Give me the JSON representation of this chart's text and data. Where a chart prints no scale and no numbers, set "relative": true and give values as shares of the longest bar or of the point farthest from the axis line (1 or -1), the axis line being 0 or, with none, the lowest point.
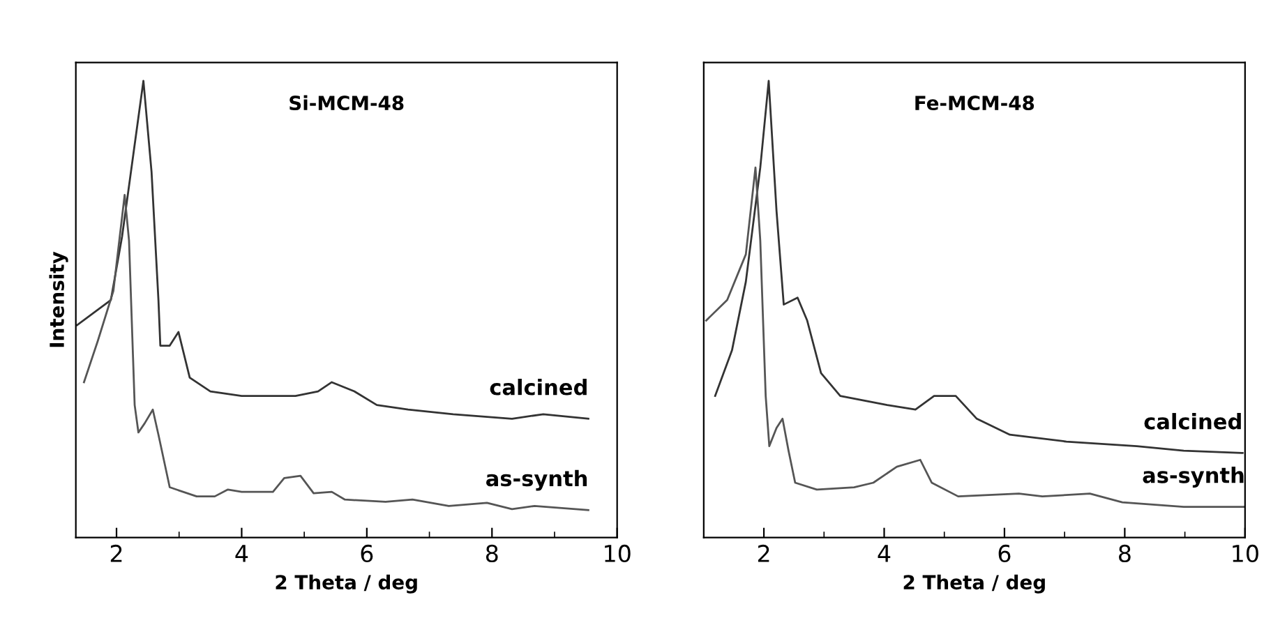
{
  "chart_data": [
    {
      "type": "line",
      "title": "Si-MCM-48",
      "xlabel": "2 Theta / deg",
      "ylabel": "Intensity",
      "relative": true,
      "xlim": [
        1.35,
        10
      ],
      "xticks": [
        2,
        4,
        6,
        8,
        10
      ],
      "tick_labels": "x",
      "grid": false,
      "legend": false,
      "marker": "none",
      "line_style": "solid",
      "series": [
        {
          "name": "calcined",
          "color": "#333333",
          "x": [
            1.37,
            1.91,
            2.09,
            2.27,
            2.43,
            2.56,
            2.67,
            2.7,
            2.85,
            2.99,
            3.17,
            3.5,
            4.0,
            4.86,
            5.22,
            5.44,
            5.8,
            6.16,
            6.66,
            7.38,
            8.32,
            8.82,
            9.54
          ],
          "values": [
            0.465,
            0.52,
            0.66,
            0.84,
            1.0,
            0.8,
            0.52,
            0.42,
            0.42,
            0.45,
            0.35,
            0.32,
            0.31,
            0.31,
            0.32,
            0.34,
            0.32,
            0.29,
            0.28,
            0.27,
            0.26,
            0.27,
            0.26
          ]
        },
        {
          "name": "as-synth",
          "color": "#555555",
          "x": [
            1.48,
            1.7,
            1.95,
            2.13,
            2.2,
            2.29,
            2.35,
            2.45,
            2.58,
            2.67,
            2.85,
            3.28,
            3.57,
            3.78,
            4.0,
            4.5,
            4.68,
            4.94,
            5.15,
            5.44,
            5.65,
            6.3,
            6.73,
            7.31,
            7.92,
            8.32,
            8.68,
            9.54
          ],
          "values": [
            0.34,
            0.43,
            0.54,
            0.75,
            0.65,
            0.29,
            0.23,
            0.25,
            0.28,
            0.225,
            0.11,
            0.09,
            0.09,
            0.105,
            0.1,
            0.1,
            0.13,
            0.135,
            0.097,
            0.1,
            0.083,
            0.078,
            0.083,
            0.069,
            0.076,
            0.062,
            0.069,
            0.06
          ]
        }
      ]
    },
    {
      "type": "line",
      "title": "Fe-MCM-48",
      "xlabel": "2 Theta / deg",
      "relative": true,
      "xlim": [
        1,
        10
      ],
      "xticks": [
        2,
        4,
        6,
        8,
        10
      ],
      "tick_labels": "x",
      "grid": false,
      "legend": false,
      "marker": "none",
      "line_style": "solid",
      "series": [
        {
          "name": "calcined",
          "color": "#333333",
          "x": [
            1.19,
            1.47,
            1.7,
            1.94,
            2.08,
            2.21,
            2.33,
            2.56,
            2.72,
            2.95,
            3.27,
            3.66,
            4.05,
            4.52,
            4.83,
            5.19,
            5.54,
            6.09,
            7.03,
            8.2,
            8.98,
            9.96
          ],
          "values": [
            0.31,
            0.41,
            0.56,
            0.81,
            1.0,
            0.715,
            0.51,
            0.525,
            0.475,
            0.36,
            0.31,
            0.3,
            0.29,
            0.28,
            0.31,
            0.31,
            0.26,
            0.225,
            0.21,
            0.2,
            0.19,
            0.185
          ]
        },
        {
          "name": "as-synth",
          "color": "#555555",
          "x": [
            1.04,
            1.39,
            1.7,
            1.86,
            1.94,
            2.03,
            2.09,
            2.21,
            2.31,
            2.41,
            2.52,
            2.88,
            3.5,
            3.82,
            4.21,
            4.6,
            4.79,
            5.23,
            6.24,
            6.63,
            7.42,
            7.96,
            8.98,
            10.0
          ],
          "values": [
            0.475,
            0.52,
            0.62,
            0.81,
            0.65,
            0.31,
            0.2,
            0.24,
            0.26,
            0.19,
            0.12,
            0.105,
            0.11,
            0.12,
            0.155,
            0.17,
            0.12,
            0.09,
            0.096,
            0.09,
            0.096,
            0.077,
            0.067,
            0.067
          ]
        }
      ]
    }
  ]
}
